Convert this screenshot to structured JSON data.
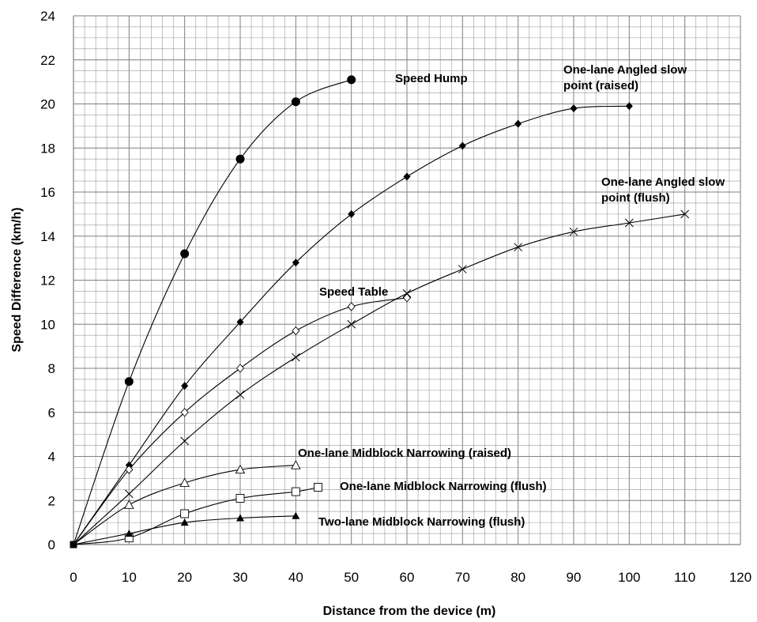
{
  "chart_data": {
    "type": "line",
    "title": "",
    "xlabel": "Distance from the device (m)",
    "ylabel": "Speed Difference (km/h)",
    "xlim": [
      0,
      120
    ],
    "ylim": [
      0,
      24
    ],
    "x_ticks": [
      "0",
      "10",
      "20",
      "30",
      "40",
      "50",
      "60",
      "70",
      "80",
      "90",
      "100",
      "110",
      "120"
    ],
    "y_ticks": [
      "0",
      "2",
      "4",
      "6",
      "8",
      "10",
      "12",
      "14",
      "16",
      "18",
      "20",
      "22",
      "24"
    ],
    "grid": true,
    "series": [
      {
        "name": "Speed Hump",
        "marker": "filled-circle",
        "x": [
          0,
          10,
          20,
          30,
          40,
          50
        ],
        "y": [
          0,
          7.4,
          13.2,
          17.5,
          20.1,
          21.1
        ]
      },
      {
        "name": "One-lane Angled slow point (raised)",
        "marker": "filled-diamond",
        "x": [
          0,
          10,
          20,
          30,
          40,
          50,
          60,
          70,
          80,
          90,
          100
        ],
        "y": [
          0,
          3.6,
          7.2,
          10.1,
          12.8,
          15.0,
          16.7,
          18.1,
          19.1,
          19.8,
          19.9
        ]
      },
      {
        "name": "One-lane Angled slow point (flush)",
        "marker": "cross",
        "x": [
          0,
          10,
          20,
          30,
          40,
          50,
          60,
          70,
          80,
          90,
          100,
          110
        ],
        "y": [
          0,
          2.3,
          4.7,
          6.8,
          8.5,
          10.0,
          11.4,
          12.5,
          13.5,
          14.2,
          14.6,
          15.0
        ]
      },
      {
        "name": "Speed Table",
        "marker": "open-diamond",
        "x": [
          0,
          10,
          20,
          30,
          40,
          50,
          60
        ],
        "y": [
          0,
          3.4,
          6.0,
          8.0,
          9.7,
          10.8,
          11.2
        ]
      },
      {
        "name": "One-lane Midblock Narrowing (raised)",
        "marker": "open-triangle",
        "x": [
          0,
          10,
          20,
          30,
          40
        ],
        "y": [
          0,
          1.8,
          2.8,
          3.4,
          3.6
        ]
      },
      {
        "name": "One-lane Midblock Narrowing (flush)",
        "marker": "open-square",
        "x": [
          0,
          10,
          20,
          30,
          40,
          44
        ],
        "y": [
          0,
          0.3,
          1.4,
          2.1,
          2.4,
          2.6
        ]
      },
      {
        "name": "Two-lane Midblock Narrowing (flush)",
        "marker": "filled-triangle",
        "x": [
          0,
          10,
          20,
          30,
          40
        ],
        "y": [
          0,
          0.5,
          1.0,
          1.2,
          1.3
        ]
      }
    ],
    "annotations": [
      {
        "series": 0,
        "lines": [
          "Speed Hump"
        ]
      },
      {
        "series": 1,
        "lines": [
          "One-lane Angled slow",
          "point (raised)"
        ]
      },
      {
        "series": 2,
        "lines": [
          "One-lane Angled slow",
          "point (flush)"
        ]
      },
      {
        "series": 3,
        "lines": [
          "Speed Table"
        ]
      },
      {
        "series": 4,
        "lines": [
          "One-lane Midblock Narrowing (raised)"
        ]
      },
      {
        "series": 5,
        "lines": [
          "One-lane Midblock Narrowing (flush)"
        ]
      },
      {
        "series": 6,
        "lines": [
          "Two-lane Midblock Narrowing (flush)"
        ]
      }
    ]
  }
}
